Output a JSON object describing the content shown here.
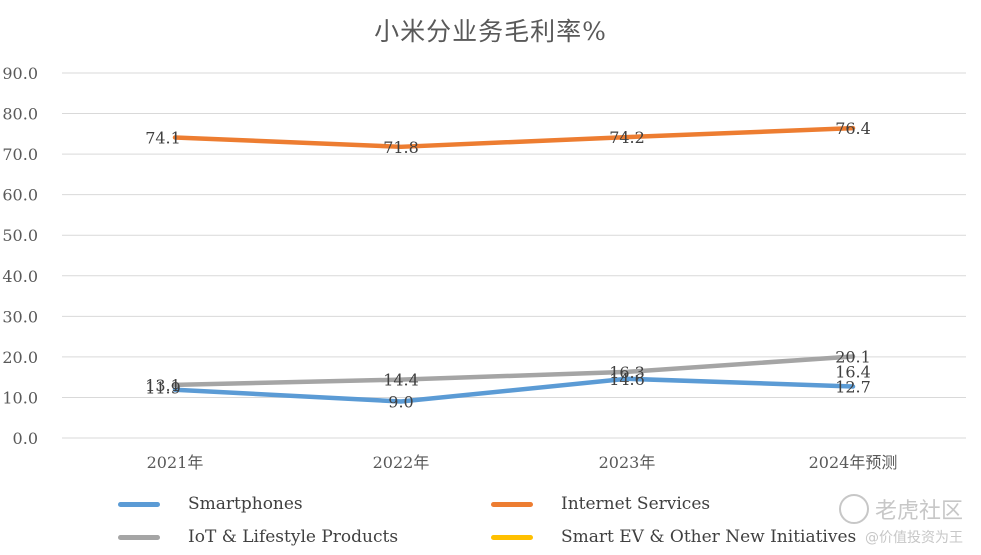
{
  "chart_data": {
    "type": "line",
    "title": "小米分业务毛利率%",
    "categories": [
      "2021年",
      "2022年",
      "2023年",
      "2024年预测"
    ],
    "ylim": [
      0,
      90
    ],
    "y_ticks": [
      "0.0",
      "10.0",
      "20.0",
      "30.0",
      "40.0",
      "50.0",
      "60.0",
      "70.0",
      "80.0",
      "90.0"
    ],
    "grid": true,
    "legend_position": "bottom",
    "series": [
      {
        "name": "Smartphones",
        "color": "#5B9BD5",
        "values": [
          11.9,
          9.0,
          14.6,
          12.7
        ],
        "labels": [
          "11.9",
          "9.0",
          "14.6",
          "12.7"
        ]
      },
      {
        "name": "Internet Services",
        "color": "#ED7D31",
        "values": [
          74.1,
          71.8,
          74.2,
          76.4
        ],
        "labels": [
          "74.1",
          "71.8",
          "74.2",
          "76.4"
        ]
      },
      {
        "name": "IoT & Lifestyle Products",
        "color": "#A5A5A5",
        "values": [
          13.1,
          14.4,
          16.3,
          20.1
        ],
        "labels": [
          "13.1",
          "14.4",
          "16.3",
          "20.1"
        ]
      },
      {
        "name": "Smart EV & Other New Initiatives",
        "color": "#FFC000",
        "values": [
          null,
          null,
          null,
          16.4
        ],
        "labels": [
          "",
          "",
          "",
          "16.4"
        ]
      }
    ]
  },
  "watermark": {
    "brand": "老虎社区",
    "user": "@价值投资为王"
  }
}
